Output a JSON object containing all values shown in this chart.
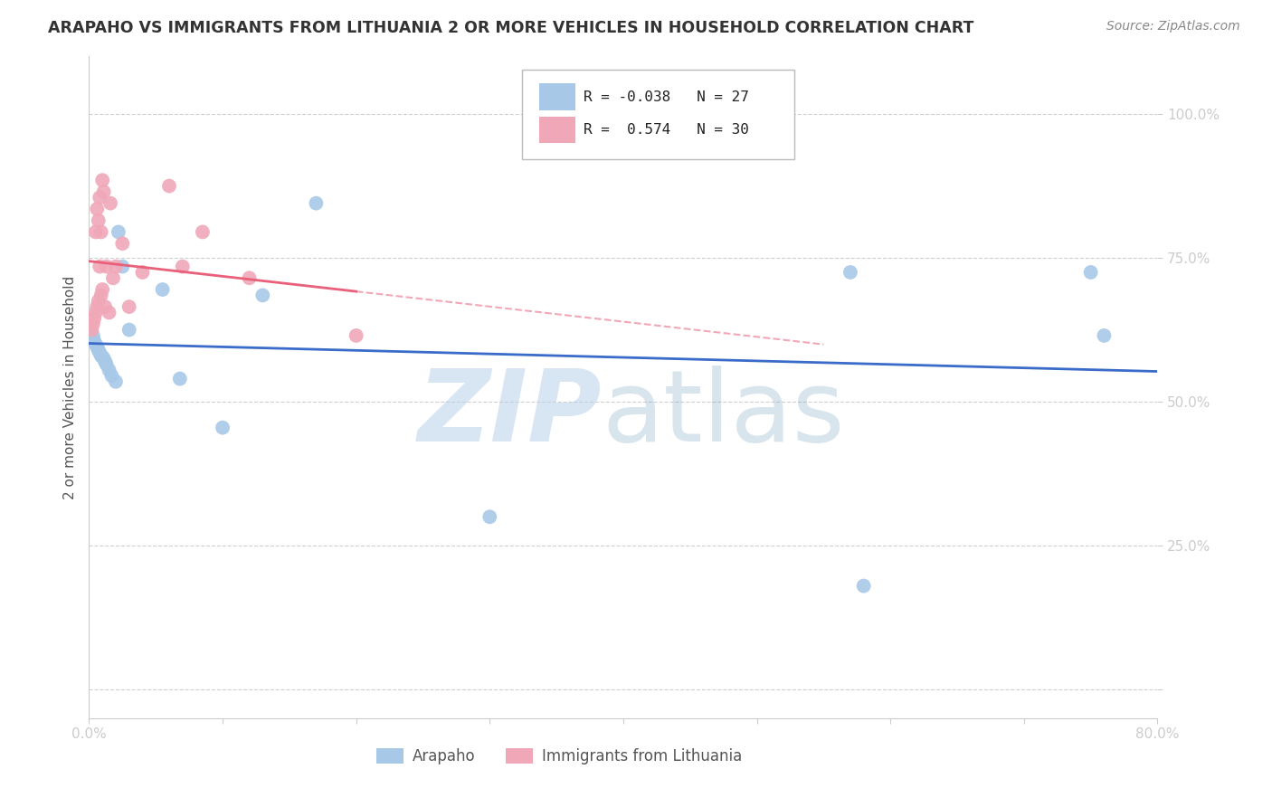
{
  "title": "ARAPAHO VS IMMIGRANTS FROM LITHUANIA 2 OR MORE VEHICLES IN HOUSEHOLD CORRELATION CHART",
  "source": "Source: ZipAtlas.com",
  "ylabel": "2 or more Vehicles in Household",
  "xlim": [
    0.0,
    0.8
  ],
  "ylim": [
    -0.05,
    1.1
  ],
  "background_color": "#ffffff",
  "arapaho_color": "#a8c8e8",
  "lithuania_color": "#f0a8b8",
  "arapaho_line_color": "#3a6bc8",
  "lithuania_line_color": "#e8607a",
  "arapaho_R": -0.038,
  "arapaho_N": 27,
  "lithuania_R": 0.574,
  "lithuania_N": 30,
  "grid_color": "#d0d0d0",
  "tick_color_y": "#4472c4",
  "tick_color_x": "#555555",
  "arapaho_x": [
    0.003,
    0.004,
    0.005,
    0.006,
    0.007,
    0.008,
    0.009,
    0.01,
    0.011,
    0.012,
    0.013,
    0.015,
    0.017,
    0.02,
    0.022,
    0.025,
    0.03,
    0.055,
    0.068,
    0.1,
    0.13,
    0.17,
    0.3,
    0.57,
    0.58,
    0.75,
    0.76
  ],
  "arapaho_y": [
    0.615,
    0.605,
    0.6,
    0.595,
    0.59,
    0.585,
    0.58,
    0.578,
    0.575,
    0.57,
    0.565,
    0.555,
    0.545,
    0.535,
    0.795,
    0.735,
    0.625,
    0.695,
    0.54,
    0.455,
    0.685,
    0.845,
    0.3,
    0.725,
    0.18,
    0.725,
    0.615
  ],
  "lithuania_x": [
    0.002,
    0.003,
    0.004,
    0.005,
    0.005,
    0.006,
    0.006,
    0.007,
    0.007,
    0.008,
    0.008,
    0.009,
    0.009,
    0.01,
    0.01,
    0.011,
    0.012,
    0.013,
    0.015,
    0.016,
    0.018,
    0.02,
    0.025,
    0.03,
    0.04,
    0.06,
    0.07,
    0.085,
    0.12,
    0.2
  ],
  "lithuania_y": [
    0.625,
    0.635,
    0.645,
    0.655,
    0.795,
    0.665,
    0.835,
    0.675,
    0.815,
    0.735,
    0.855,
    0.685,
    0.795,
    0.695,
    0.885,
    0.865,
    0.665,
    0.735,
    0.655,
    0.845,
    0.715,
    0.735,
    0.775,
    0.665,
    0.725,
    0.875,
    0.735,
    0.795,
    0.715,
    0.615
  ]
}
